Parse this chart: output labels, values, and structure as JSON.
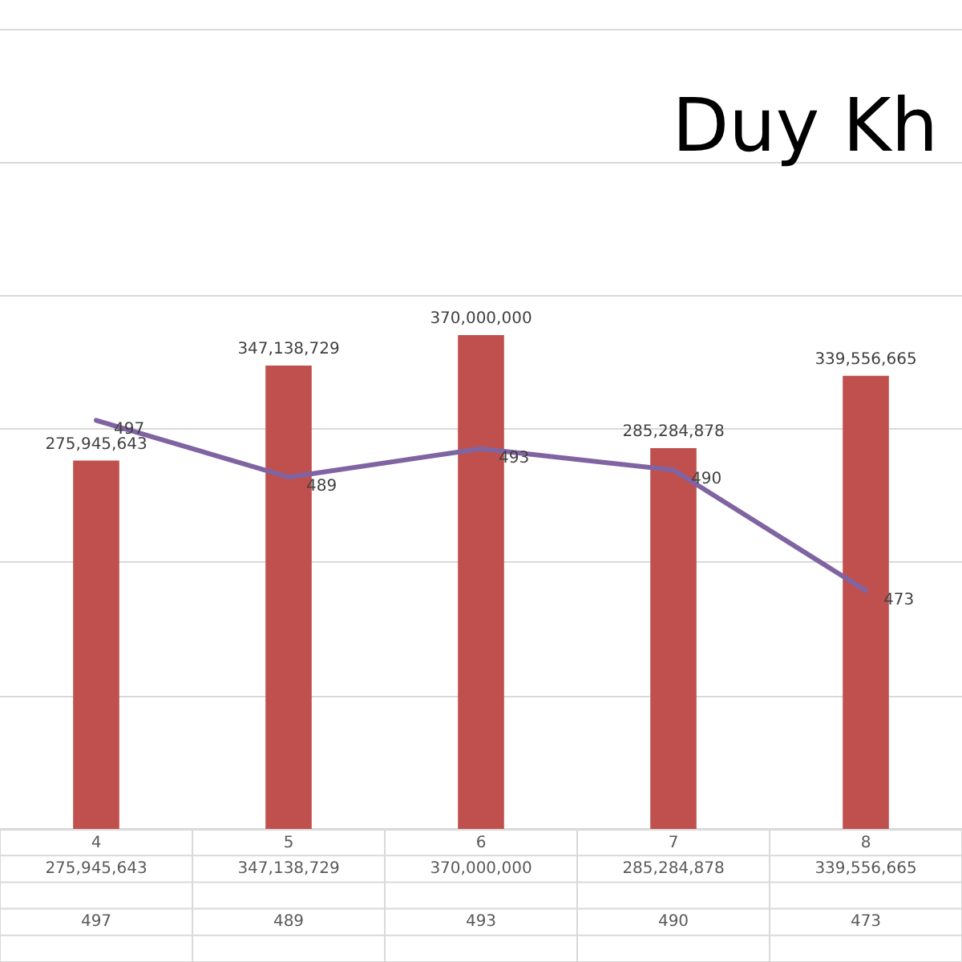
{
  "chart_data": {
    "type": "bar",
    "title": "Duy Kh",
    "categories": [
      "4",
      "5",
      "6",
      "7",
      "8"
    ],
    "series": [
      {
        "color": "#c0504d",
        "values": [
          275945643,
          347138729,
          370000000,
          285284878,
          339556665
        ],
        "value_labels": [
          "275,945,643",
          "347,138,729",
          "370,000,000",
          "285,284,878",
          "339,556,665"
        ]
      },
      {
        "type": "line",
        "axis": "y2",
        "color": "#8064a2",
        "values": [
          497,
          489,
          493,
          490,
          473
        ],
        "value_labels": [
          "497",
          "489",
          "493",
          "490",
          "473"
        ]
      }
    ],
    "grid": "y",
    "tick_labels": "x",
    "marker": "none",
    "line_style": "solid"
  }
}
